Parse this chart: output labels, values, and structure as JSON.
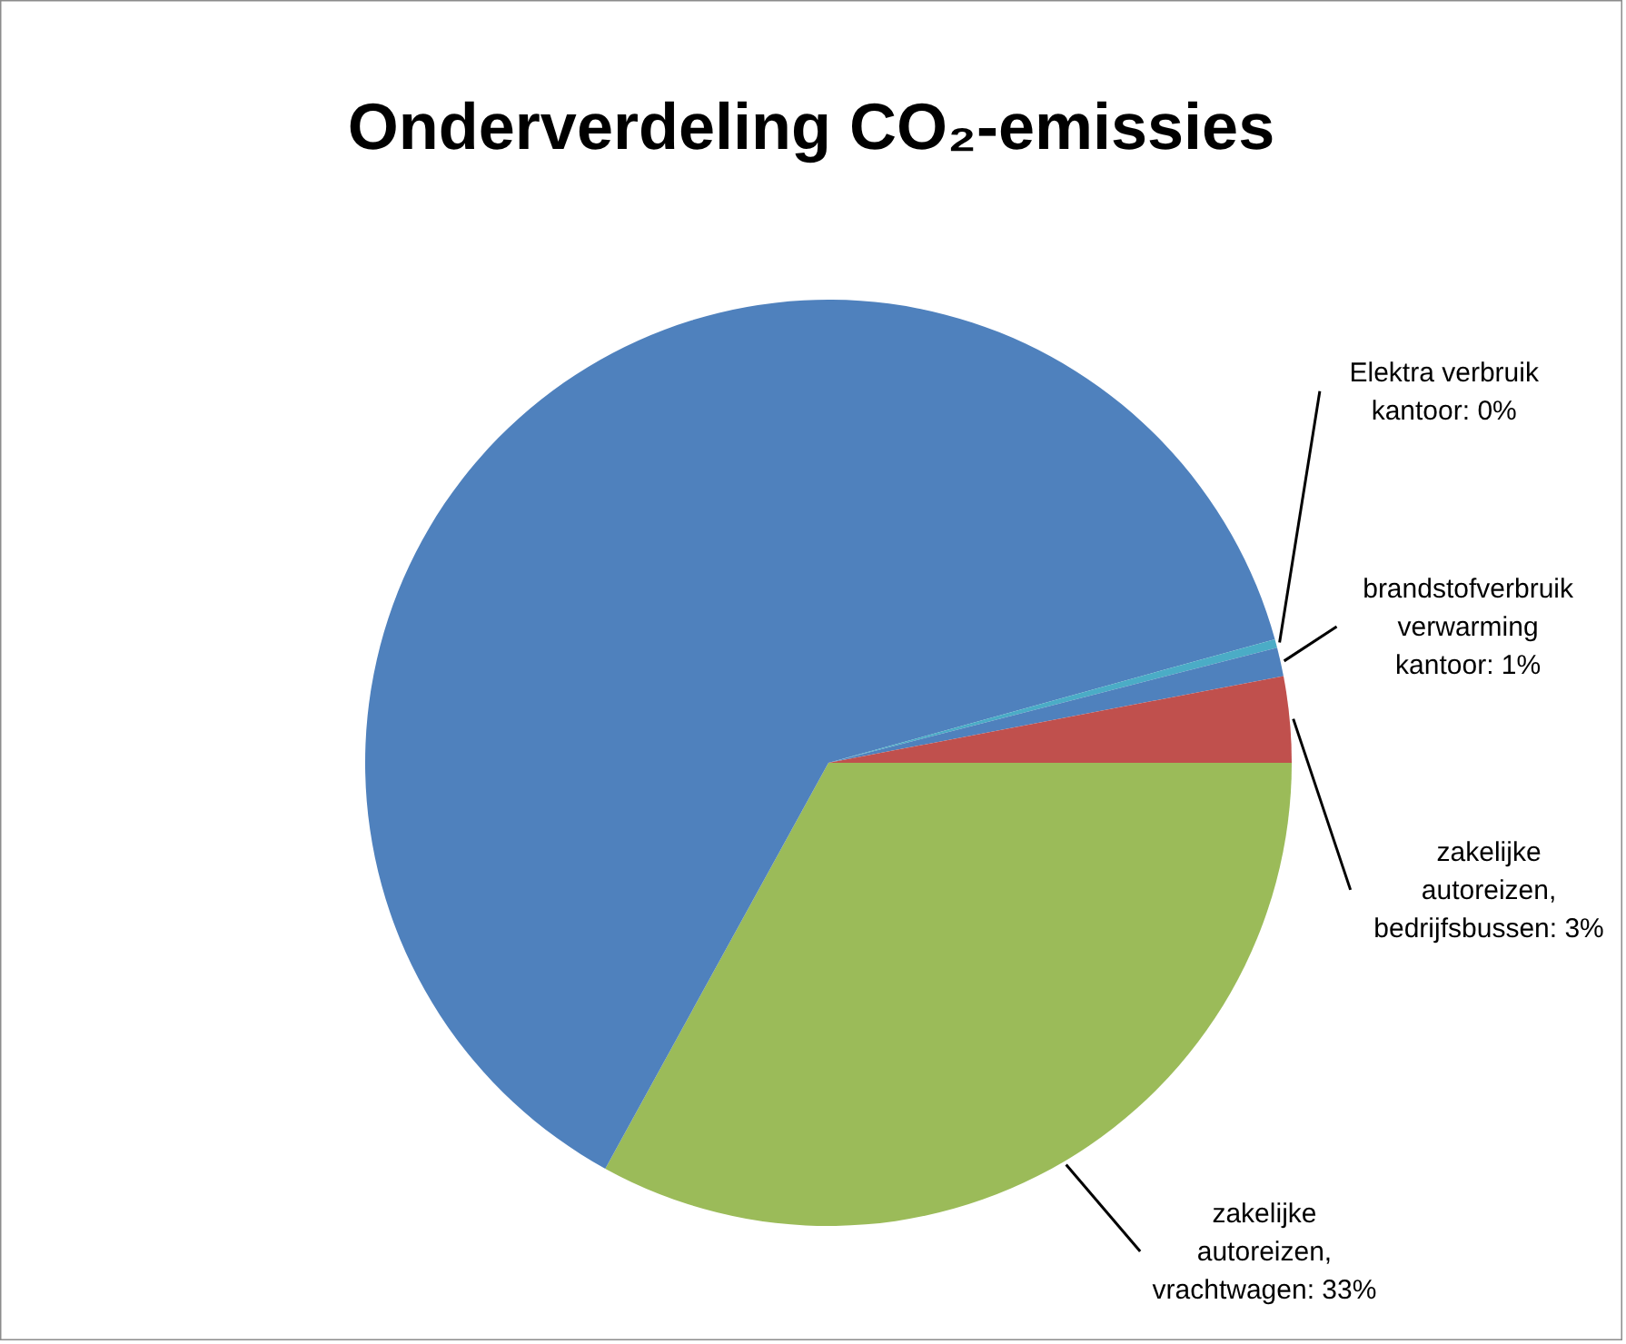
{
  "chart_data": {
    "type": "pie",
    "title": "Onderverdeling CO₂-emissies",
    "categories": [
      "zakelijke autoreizen, vrachtwagen",
      null,
      "Elektra verbruik kantoor",
      "brandstofverbruik verwarming kantoor",
      "zakelijke autoreizen, bedrijfsbussen"
    ],
    "values": [
      33,
      62.7,
      0.3,
      1,
      3
    ],
    "value_labels": [
      "33%",
      null,
      "0%",
      "1%",
      "3%"
    ],
    "colors": [
      "#9bbb59",
      "#4f81bd",
      "#4bacc6",
      "#4f81bd",
      "#c0504d"
    ],
    "legend": false
  }
}
